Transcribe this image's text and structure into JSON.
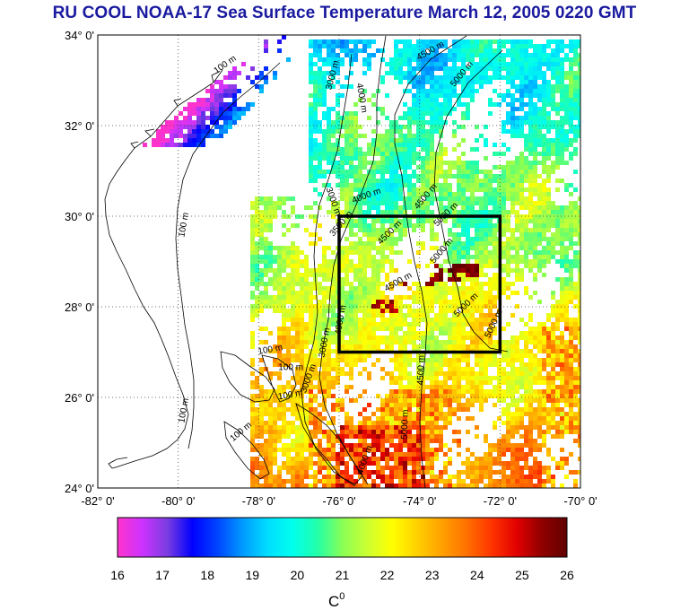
{
  "title": "RU COOL  NOAA-17 Sea Surface Temperature March 12, 2005 0220 GMT",
  "map": {
    "lon_range": [
      -82,
      -70
    ],
    "lat_range": [
      24,
      34
    ],
    "lon_labels": [
      "-82° 0'",
      "-80° 0'",
      "-78° 0'",
      "-76° 0'",
      "-74° 0'",
      "-72° 0'",
      "-70° 0'"
    ],
    "lat_labels": [
      "34° 0'",
      "32° 0'",
      "30° 0'",
      "28° 0'",
      "26° 0'",
      "24° 0'"
    ],
    "study_box": {
      "lon": [
        -76,
        -72
      ],
      "lat": [
        27,
        30
      ]
    },
    "grid": "dotted",
    "contour_labels": [
      {
        "text": "100 m",
        "lon": -78.8,
        "lat": 33.3,
        "rot": -35
      },
      {
        "text": "100 m",
        "lon": -79.8,
        "lat": 29.8,
        "rot": -80
      },
      {
        "text": "100 m",
        "lon": -77.7,
        "lat": 27.0,
        "rot": -10
      },
      {
        "text": "100 m",
        "lon": -77.2,
        "lat": 26.0,
        "rot": -10
      },
      {
        "text": "100 m",
        "lon": -79.8,
        "lat": 25.7,
        "rot": -80
      },
      {
        "text": "100 m",
        "lon": -78.4,
        "lat": 25.2,
        "rot": -40
      },
      {
        "text": "100 m",
        "lon": -77.2,
        "lat": 26.6,
        "rot": 0
      },
      {
        "text": "3000 m",
        "lon": -76.1,
        "lat": 33.1,
        "rot": -75
      },
      {
        "text": "4000 m",
        "lon": -75.5,
        "lat": 32.6,
        "rot": 80
      },
      {
        "text": "4500 m",
        "lon": -73.7,
        "lat": 33.6,
        "rot": -30
      },
      {
        "text": "5000 m",
        "lon": -72.9,
        "lat": 33.1,
        "rot": -50
      },
      {
        "text": "3000 m",
        "lon": -76.2,
        "lat": 30.3,
        "rot": 70
      },
      {
        "text": "4000 m",
        "lon": -75.3,
        "lat": 30.4,
        "rot": -20
      },
      {
        "text": "4500 m",
        "lon": -73.8,
        "lat": 30.4,
        "rot": -50
      },
      {
        "text": "5000 m",
        "lon": -73.3,
        "lat": 30.0,
        "rot": -45
      },
      {
        "text": "3500 m",
        "lon": -75.9,
        "lat": 29.8,
        "rot": -50
      },
      {
        "text": "4500 m",
        "lon": -74.7,
        "lat": 29.6,
        "rot": -45
      },
      {
        "text": "5000 m",
        "lon": -73.4,
        "lat": 29.2,
        "rot": -50
      },
      {
        "text": "4500 m",
        "lon": -74.5,
        "lat": 28.5,
        "rot": -30
      },
      {
        "text": "5000 m",
        "lon": -72.8,
        "lat": 28.0,
        "rot": -45
      },
      {
        "text": "5000 m",
        "lon": -72.1,
        "lat": 27.6,
        "rot": -65
      },
      {
        "text": "4000 m",
        "lon": -75.9,
        "lat": 27.7,
        "rot": -80
      },
      {
        "text": "3000 m",
        "lon": -76.3,
        "lat": 27.2,
        "rot": -80
      },
      {
        "text": "4500 m",
        "lon": -73.9,
        "lat": 26.6,
        "rot": -88
      },
      {
        "text": "5000 m",
        "lon": -74.3,
        "lat": 25.4,
        "rot": -88
      },
      {
        "text": "4000 m",
        "lon": -75.3,
        "lat": 24.6,
        "rot": -70
      },
      {
        "text": "3000 m",
        "lon": -76.7,
        "lat": 26.4,
        "rot": -70
      }
    ]
  },
  "colorbar": {
    "min": 16,
    "max": 26,
    "ticks": [
      "16",
      "17",
      "18",
      "19",
      "20",
      "21",
      "22",
      "23",
      "24",
      "25",
      "26"
    ],
    "unit_base": "C",
    "unit_sup": "0",
    "stops": [
      "#ff33cc",
      "#cc33ff",
      "#7a3de0",
      "#0000ff",
      "#0044ff",
      "#0099ff",
      "#00ddff",
      "#00ffee",
      "#22ffaa",
      "#88ff55",
      "#ccff33",
      "#ffff00",
      "#ffd000",
      "#ffa000",
      "#ff7000",
      "#ff3300",
      "#e00000",
      "#900000",
      "#600000"
    ]
  },
  "colors": {
    "land_bg": "#ffffff",
    "coast": "#000000",
    "box": "#000000"
  }
}
